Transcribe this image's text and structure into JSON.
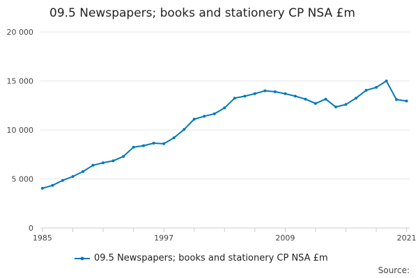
{
  "chart_data": {
    "type": "line",
    "title": "09.5 Newspapers; books and stationery CP NSA £m",
    "xlabel": "",
    "ylabel": "",
    "x": [
      1985,
      1986,
      1987,
      1988,
      1989,
      1990,
      1991,
      1992,
      1993,
      1994,
      1995,
      1996,
      1997,
      1998,
      1999,
      2000,
      2001,
      2002,
      2003,
      2004,
      2005,
      2006,
      2007,
      2008,
      2009,
      2010,
      2011,
      2012,
      2013,
      2014,
      2015,
      2016,
      2017,
      2018,
      2019,
      2020,
      2021
    ],
    "x_ticks": [
      "1985",
      "1997",
      "2009",
      "2021"
    ],
    "x_tick_values": [
      1985,
      1997,
      2009,
      2021
    ],
    "xlim": [
      1984.8,
      2021.3
    ],
    "ylim": [
      0,
      20000
    ],
    "y_ticks": [
      "0",
      "5 000",
      "10 000",
      "15 000",
      "20 000"
    ],
    "y_tick_values": [
      0,
      5000,
      10000,
      15000,
      20000
    ],
    "grid": true,
    "legend_position": "bottom",
    "series": [
      {
        "name": "09.5 Newspapers; books and stationery CP NSA £m",
        "color": "#0077bb",
        "values": [
          4050,
          4350,
          4850,
          5250,
          5750,
          6400,
          6650,
          6850,
          7300,
          8250,
          8400,
          8650,
          8600,
          9200,
          10050,
          11100,
          11400,
          11650,
          12250,
          13250,
          13450,
          13700,
          14000,
          13900,
          13700,
          13450,
          13150,
          12700,
          13150,
          12350,
          12600,
          13250,
          14050,
          14350,
          15000,
          13100,
          12950
        ]
      }
    ]
  },
  "footer": {
    "source_label": "Source:"
  }
}
